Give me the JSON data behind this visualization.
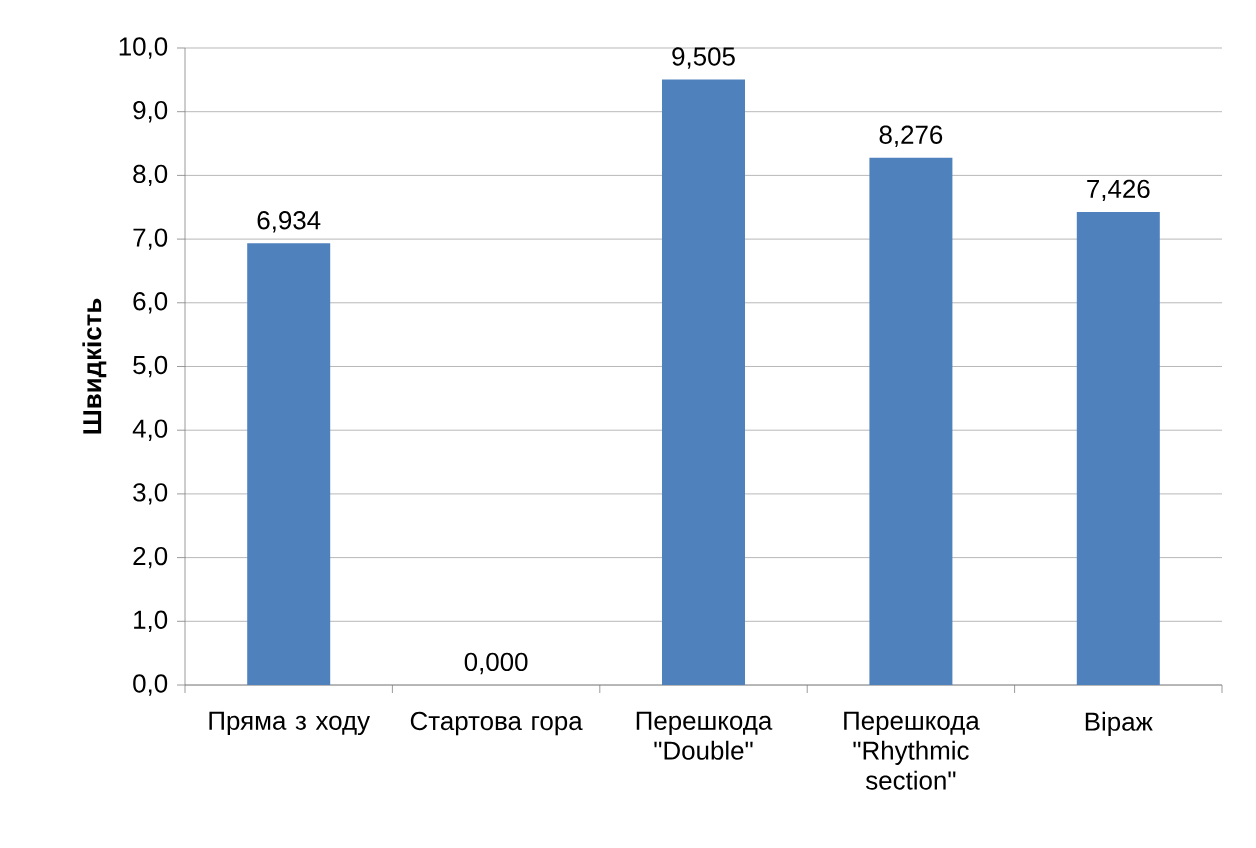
{
  "chart_data": {
    "type": "bar",
    "ylabel": "Швидкість",
    "categories": [
      "Пряма з ходу",
      "Стартова гора",
      "Перешкода \"Double\"",
      "Перешкода \"Rhythmic section\"",
      "Віраж"
    ],
    "values": [
      6.934,
      0.0,
      9.505,
      8.276,
      7.426
    ],
    "value_labels": [
      "6,934",
      "0,000",
      "9,505",
      "8,276",
      "7,426"
    ],
    "color": "#4f81bd",
    "grid": "y",
    "ylim": [
      0,
      10
    ],
    "yticks": [
      {
        "value": 0,
        "label": "0,0"
      },
      {
        "value": 1,
        "label": "1,0"
      },
      {
        "value": 2,
        "label": "2,0"
      },
      {
        "value": 3,
        "label": "3,0"
      },
      {
        "value": 4,
        "label": "4,0"
      },
      {
        "value": 5,
        "label": "5,0"
      },
      {
        "value": 6,
        "label": "6,0"
      },
      {
        "value": 7,
        "label": "7,0"
      },
      {
        "value": 8,
        "label": "8,0"
      },
      {
        "value": 9,
        "label": "9,0"
      },
      {
        "value": 10,
        "label": "10,0"
      }
    ]
  }
}
